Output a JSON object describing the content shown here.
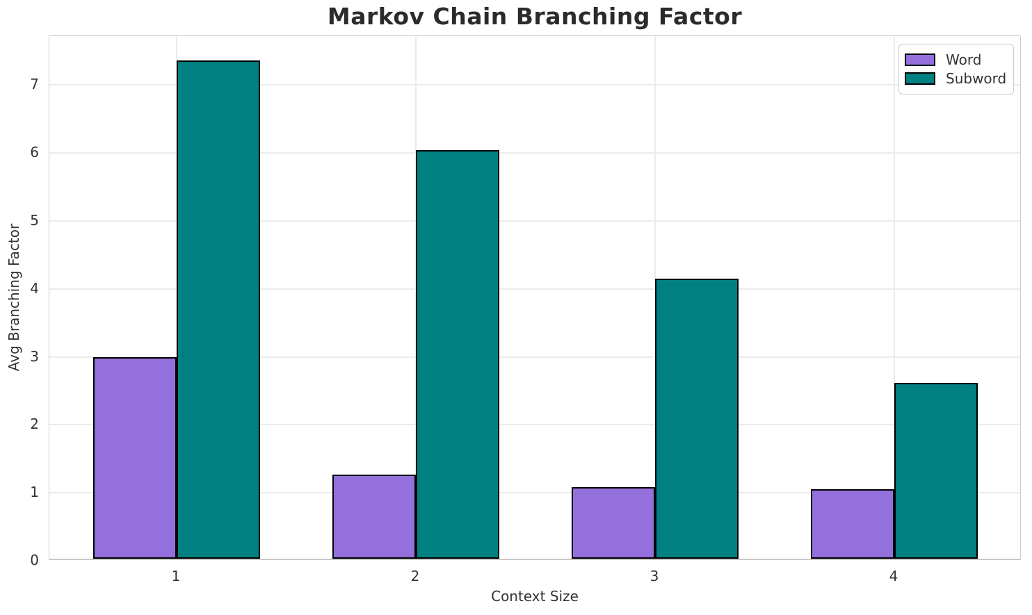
{
  "chart_data": {
    "type": "bar",
    "title": "Markov Chain Branching Factor",
    "xlabel": "Context Size",
    "ylabel": "Avg Branching Factor",
    "categories": [
      "1",
      "2",
      "3",
      "4"
    ],
    "series": [
      {
        "name": "Word",
        "color": "#9370DB",
        "edge_color": "#000000",
        "values": [
          2.97,
          1.24,
          1.05,
          1.02
        ]
      },
      {
        "name": "Subword",
        "color": "#008080",
        "edge_color": "#000000",
        "values": [
          7.33,
          6.01,
          4.12,
          2.59
        ]
      }
    ],
    "ylim": [
      0,
      7.72
    ],
    "yticks": [
      0,
      1,
      2,
      3,
      4,
      5,
      6,
      7
    ],
    "grid": true,
    "legend_position": "upper right",
    "bar_width_fraction": 0.35
  },
  "colors": {
    "background": "#ffffff",
    "grid": "#ebebeb",
    "spine": "#cccccc",
    "tick_text": "#333333",
    "title_text": "#2b2b2b"
  }
}
